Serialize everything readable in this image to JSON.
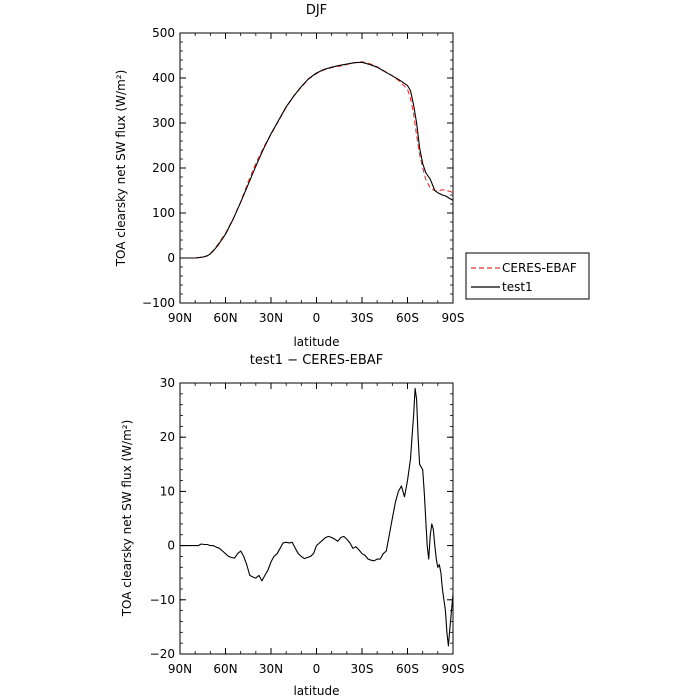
{
  "chart_data": [
    {
      "type": "line",
      "title": "DJF",
      "xlabel": "latitude",
      "ylabel": "TOA clearsky net SW flux (W/m²)",
      "xlim": [
        90,
        -90
      ],
      "ylim": [
        -100,
        500
      ],
      "xticks": [
        90,
        60,
        30,
        0,
        -30,
        -60,
        -90
      ],
      "xticklabels": [
        "90N",
        "60N",
        "30N",
        "0",
        "30S",
        "60S",
        "90S"
      ],
      "yticks": [
        -100,
        0,
        100,
        200,
        300,
        400,
        500
      ],
      "yticklabels": [
        "−100",
        "0",
        "100",
        "200",
        "300",
        "400",
        "500"
      ],
      "legend": {
        "position": "right",
        "entries": [
          "CERES-EBAF",
          "test1"
        ]
      },
      "series": [
        {
          "name": "CERES-EBAF",
          "color": "#e8332a",
          "dash": true,
          "x": [
            90,
            85,
            80,
            75,
            72,
            70,
            68,
            65,
            60,
            55,
            50,
            45,
            40,
            35,
            30,
            25,
            20,
            15,
            10,
            5,
            0,
            -5,
            -10,
            -15,
            -20,
            -25,
            -30,
            -35,
            -40,
            -45,
            -50,
            -55,
            -60,
            -62,
            -64,
            -66,
            -68,
            -70,
            -72,
            -75,
            -78,
            -80,
            -83,
            -85,
            -88,
            -90
          ],
          "y": [
            0,
            0,
            0,
            2,
            5,
            10,
            17,
            30,
            55,
            87,
            125,
            170,
            210,
            245,
            275,
            305,
            335,
            360,
            380,
            398,
            410,
            418,
            423,
            426,
            430,
            434,
            436,
            432,
            425,
            415,
            405,
            392,
            375,
            355,
            320,
            272,
            230,
            200,
            175,
            155,
            150,
            148,
            152,
            150,
            148,
            145
          ]
        },
        {
          "name": "test1",
          "color": "#000000",
          "dash": false,
          "x": [
            90,
            85,
            80,
            75,
            72,
            70,
            68,
            65,
            60,
            55,
            50,
            45,
            40,
            35,
            30,
            25,
            20,
            15,
            10,
            5,
            0,
            -5,
            -10,
            -15,
            -20,
            -25,
            -30,
            -35,
            -40,
            -45,
            -50,
            -55,
            -60,
            -62,
            -64,
            -66,
            -68,
            -70,
            -72,
            -75,
            -78,
            -80,
            -83,
            -85,
            -88,
            -90
          ],
          "y": [
            0,
            0,
            0,
            2,
            5,
            9,
            16,
            28,
            53,
            86,
            124,
            164,
            204,
            242,
            276,
            306,
            336,
            360,
            381,
            399,
            411,
            419,
            424,
            428,
            431,
            434,
            435,
            430,
            424,
            414,
            405,
            395,
            383,
            372,
            340,
            300,
            245,
            210,
            190,
            175,
            150,
            145,
            140,
            138,
            132,
            128
          ]
        }
      ]
    },
    {
      "type": "line",
      "title": "test1 − CERES-EBAF",
      "xlabel": "latitude",
      "ylabel": "TOA clearsky net SW flux (W/m²)",
      "xlim": [
        90,
        -90
      ],
      "ylim": [
        -20,
        30
      ],
      "xticks": [
        90,
        60,
        30,
        0,
        -30,
        -60,
        -90
      ],
      "xticklabels": [
        "90N",
        "60N",
        "30N",
        "0",
        "30S",
        "60S",
        "90S"
      ],
      "yticks": [
        -20,
        -10,
        0,
        10,
        20,
        30
      ],
      "yticklabels": [
        "−20",
        "−10",
        "0",
        "10",
        "20",
        "30"
      ],
      "series": [
        {
          "color": "#000000",
          "dash": false,
          "x": [
            90,
            86,
            82,
            78,
            76,
            74,
            72,
            70,
            68,
            66,
            64,
            62,
            60,
            58,
            56,
            54,
            52,
            50,
            48,
            46,
            44,
            42,
            40,
            38,
            36,
            34,
            32,
            30,
            28,
            26,
            24,
            22,
            20,
            18,
            16,
            14,
            12,
            10,
            8,
            6,
            4,
            2,
            0,
            -2,
            -4,
            -6,
            -8,
            -10,
            -12,
            -14,
            -16,
            -18,
            -20,
            -22,
            -24,
            -26,
            -28,
            -30,
            -32,
            -34,
            -36,
            -38,
            -40,
            -42,
            -44,
            -46,
            -48,
            -50,
            -52,
            -54,
            -56,
            -58,
            -60,
            -62,
            -63,
            -64,
            -65,
            -66,
            -67,
            -68,
            -70,
            -71,
            -72,
            -73,
            -74,
            -75,
            -76,
            -77,
            -78,
            -79,
            -80,
            -81,
            -82,
            -83,
            -84,
            -85,
            -86,
            -87,
            -88,
            -89,
            -90
          ],
          "y": [
            0,
            0,
            0,
            0,
            0.3,
            0.2,
            0.2,
            0,
            0,
            -0.3,
            -0.5,
            -1,
            -1.5,
            -2,
            -2.2,
            -2.3,
            -1.5,
            -1,
            -2,
            -3.5,
            -5.5,
            -5.8,
            -6,
            -5.5,
            -6.5,
            -5.5,
            -4.5,
            -3,
            -2,
            -1.5,
            -0.5,
            0.5,
            0.6,
            0.5,
            0.6,
            -0.5,
            -1.5,
            -2,
            -2.4,
            -2.2,
            -2,
            -1.5,
            0,
            0.5,
            1,
            1.5,
            1.7,
            1.5,
            1.2,
            0.8,
            1.5,
            1.7,
            1.2,
            0.5,
            -0.5,
            -0.2,
            -0.8,
            -1.5,
            -1.8,
            -2.5,
            -2.7,
            -2.8,
            -2.5,
            -2.5,
            -1.5,
            -1,
            2,
            5,
            8,
            10,
            11,
            9,
            12,
            16,
            20,
            24,
            29,
            27,
            20,
            15,
            14,
            10,
            5,
            0,
            -2.5,
            2,
            4,
            3,
            0,
            -2.5,
            -4,
            -3.5,
            -5,
            -8,
            -10,
            -12,
            -16,
            -18.5,
            -15,
            -12,
            -9
          ],
          "endpoint_note": ""
        }
      ]
    }
  ]
}
